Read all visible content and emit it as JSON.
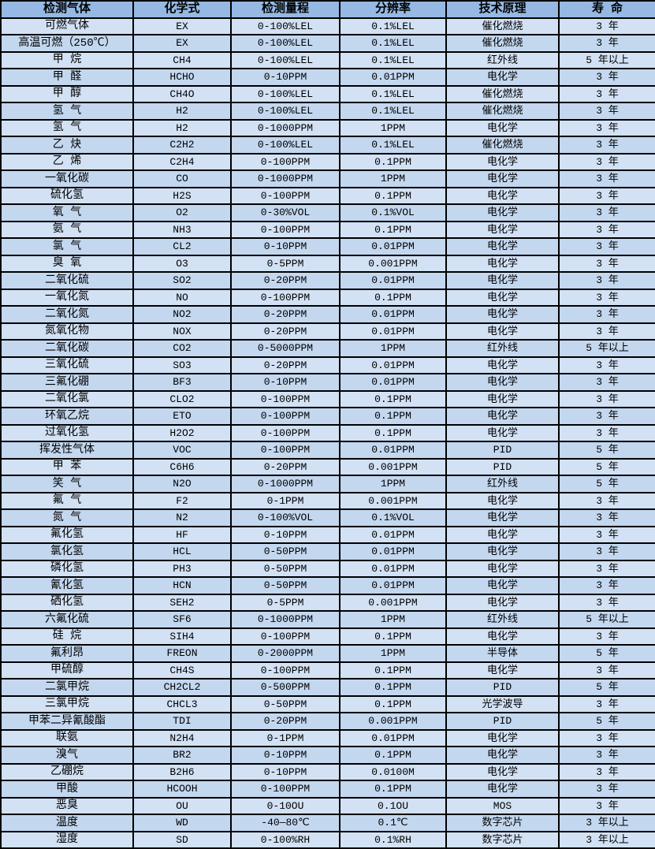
{
  "chart_data": {
    "type": "table",
    "columns": [
      "检测气体",
      "化学式",
      "检测量程",
      "分辨率",
      "技术原理",
      "寿 命"
    ],
    "rows": [
      [
        "可燃气体",
        "EX",
        "0-100%LEL",
        "0.1%LEL",
        "催化燃烧",
        "3 年"
      ],
      [
        "高温可燃（250℃）",
        "EX",
        "0-100%LEL",
        "0.1%LEL",
        "催化燃烧",
        "3 年"
      ],
      [
        "甲 烷",
        "CH4",
        "0-100%LEL",
        "0.1%LEL",
        "红外线",
        "5 年以上"
      ],
      [
        "甲 醛",
        "HCHO",
        "0-10PPM",
        "0.01PPM",
        "电化学",
        "3 年"
      ],
      [
        "甲 醇",
        "CH4O",
        "0-100%LEL",
        "0.1%LEL",
        "催化燃烧",
        "3 年"
      ],
      [
        "氢 气",
        "H2",
        "0-100%LEL",
        "0.1%LEL",
        "催化燃烧",
        "3 年"
      ],
      [
        "氢 气",
        "H2",
        "0-1000PPM",
        "1PPM",
        "电化学",
        "3 年"
      ],
      [
        "乙 炔",
        "C2H2",
        "0-100%LEL",
        "0.1%LEL",
        "催化燃烧",
        "3 年"
      ],
      [
        "乙 烯",
        "C2H4",
        "0-100PPM",
        "0.1PPM",
        "电化学",
        "3 年"
      ],
      [
        "一氧化碳",
        "CO",
        "0-1000PPM",
        "1PPM",
        "电化学",
        "3 年"
      ],
      [
        "硫化氢",
        "H2S",
        "0-100PPM",
        "0.1PPM",
        "电化学",
        "3 年"
      ],
      [
        "氧 气",
        "O2",
        "0-30%VOL",
        "0.1%VOL",
        "电化学",
        "3 年"
      ],
      [
        "氨 气",
        "NH3",
        "0-100PPM",
        "0.1PPM",
        "电化学",
        "3 年"
      ],
      [
        "氯 气",
        "CL2",
        "0-10PPM",
        "0.01PPM",
        "电化学",
        "3 年"
      ],
      [
        "臭 氧",
        "O3",
        "0-5PPM",
        "0.001PPM",
        "电化学",
        "3 年"
      ],
      [
        "二氧化硫",
        "SO2",
        "0-20PPM",
        "0.01PPM",
        "电化学",
        "3 年"
      ],
      [
        "一氧化氮",
        "NO",
        "0-100PPM",
        "0.1PPM",
        "电化学",
        "3 年"
      ],
      [
        "二氧化氮",
        "NO2",
        "0-20PPM",
        "0.01PPM",
        "电化学",
        "3 年"
      ],
      [
        "氮氧化物",
        "NOX",
        "0-20PPM",
        "0.01PPM",
        "电化学",
        "3 年"
      ],
      [
        "二氧化碳",
        "CO2",
        "0-5000PPM",
        "1PPM",
        "红外线",
        "5 年以上"
      ],
      [
        "三氧化硫",
        "SO3",
        "0-20PPM",
        "0.01PPM",
        "电化学",
        "3 年"
      ],
      [
        "三氟化硼",
        "BF3",
        "0-10PPM",
        "0.01PPM",
        "电化学",
        "3 年"
      ],
      [
        "二氧化氯",
        "CLO2",
        "0-100PPM",
        "0.1PPM",
        "电化学",
        "3 年"
      ],
      [
        "环氧乙烷",
        "ETO",
        "0-100PPM",
        "0.1PPM",
        "电化学",
        "3 年"
      ],
      [
        "过氧化氢",
        "H2O2",
        "0-100PPM",
        "0.1PPM",
        "电化学",
        "3 年"
      ],
      [
        "挥发性气体",
        "VOC",
        "0-100PPM",
        "0.01PPM",
        "PID",
        "5 年"
      ],
      [
        "甲 苯",
        "C6H6",
        "0-20PPM",
        "0.001PPM",
        "PID",
        "5 年"
      ],
      [
        "笑 气",
        "N2O",
        "0-1000PPM",
        "1PPM",
        "红外线",
        "5 年"
      ],
      [
        "氟 气",
        "F2",
        "0-1PPM",
        "0.001PPM",
        "电化学",
        "3 年"
      ],
      [
        "氮 气",
        "N2",
        "0-100%VOL",
        "0.1%VOL",
        "电化学",
        "3 年"
      ],
      [
        "氟化氢",
        "HF",
        "0-10PPM",
        "0.01PPM",
        "电化学",
        "3 年"
      ],
      [
        "氯化氢",
        "HCL",
        "0-50PPM",
        "0.01PPM",
        "电化学",
        "3 年"
      ],
      [
        "磷化氢",
        "PH3",
        "0-50PPM",
        "0.01PPM",
        "电化学",
        "3 年"
      ],
      [
        "氰化氢",
        "HCN",
        "0-50PPM",
        "0.01PPM",
        "电化学",
        "3 年"
      ],
      [
        "硒化氢",
        "SEH2",
        "0-5PPM",
        "0.001PPM",
        "电化学",
        "3 年"
      ],
      [
        "六氟化硫",
        "SF6",
        "0-1000PPM",
        "1PPM",
        "红外线",
        "5 年以上"
      ],
      [
        "硅 烷",
        "SIH4",
        "0-100PPM",
        "0.1PPM",
        "电化学",
        "3 年"
      ],
      [
        "氟利昂",
        "FREON",
        "0-2000PPM",
        "1PPM",
        "半导体",
        "5 年"
      ],
      [
        "甲硫醇",
        "CH4S",
        "0-100PPM",
        "0.1PPM",
        "电化学",
        "3 年"
      ],
      [
        "二氯甲烷",
        "CH2CL2",
        "0-500PPM",
        "0.1PPM",
        "PID",
        "5 年"
      ],
      [
        "三氯甲烷",
        "CHCL3",
        "0-50PPM",
        "0.1PPM",
        "光学波导",
        "3 年"
      ],
      [
        "甲苯二异氰酸酯",
        "TDI",
        "0-20PPM",
        "0.001PPM",
        "PID",
        "5 年"
      ],
      [
        "联氨",
        "N2H4",
        "0-1PPM",
        "0.01PPM",
        "电化学",
        "3 年"
      ],
      [
        "溴气",
        "BR2",
        "0-10PPM",
        "0.1PPM",
        "电化学",
        "3 年"
      ],
      [
        "乙硼烷",
        "B2H6",
        "0-10PPM",
        "0.0100M",
        "电化学",
        "3 年"
      ],
      [
        "甲酸",
        "HCOOH",
        "0-100PPM",
        "0.1PPM",
        "电化学",
        "3 年"
      ],
      [
        "恶臭",
        "OU",
        "0-10OU",
        "0.1OU",
        "MOS",
        "3 年"
      ],
      [
        "温度",
        "WD",
        "-40—80℃",
        "0.1℃",
        "数字芯片",
        "3 年以上"
      ],
      [
        "湿度",
        "SD",
        "0-100%RH",
        "0.1%RH",
        "数字芯片",
        "3 年以上"
      ]
    ]
  },
  "colors": {
    "header_bg": "#95b9e2",
    "row_odd_bg": "#d2e1f4",
    "row_even_bg": "#c3d7ef",
    "border": "#000000",
    "text": "#000000"
  }
}
